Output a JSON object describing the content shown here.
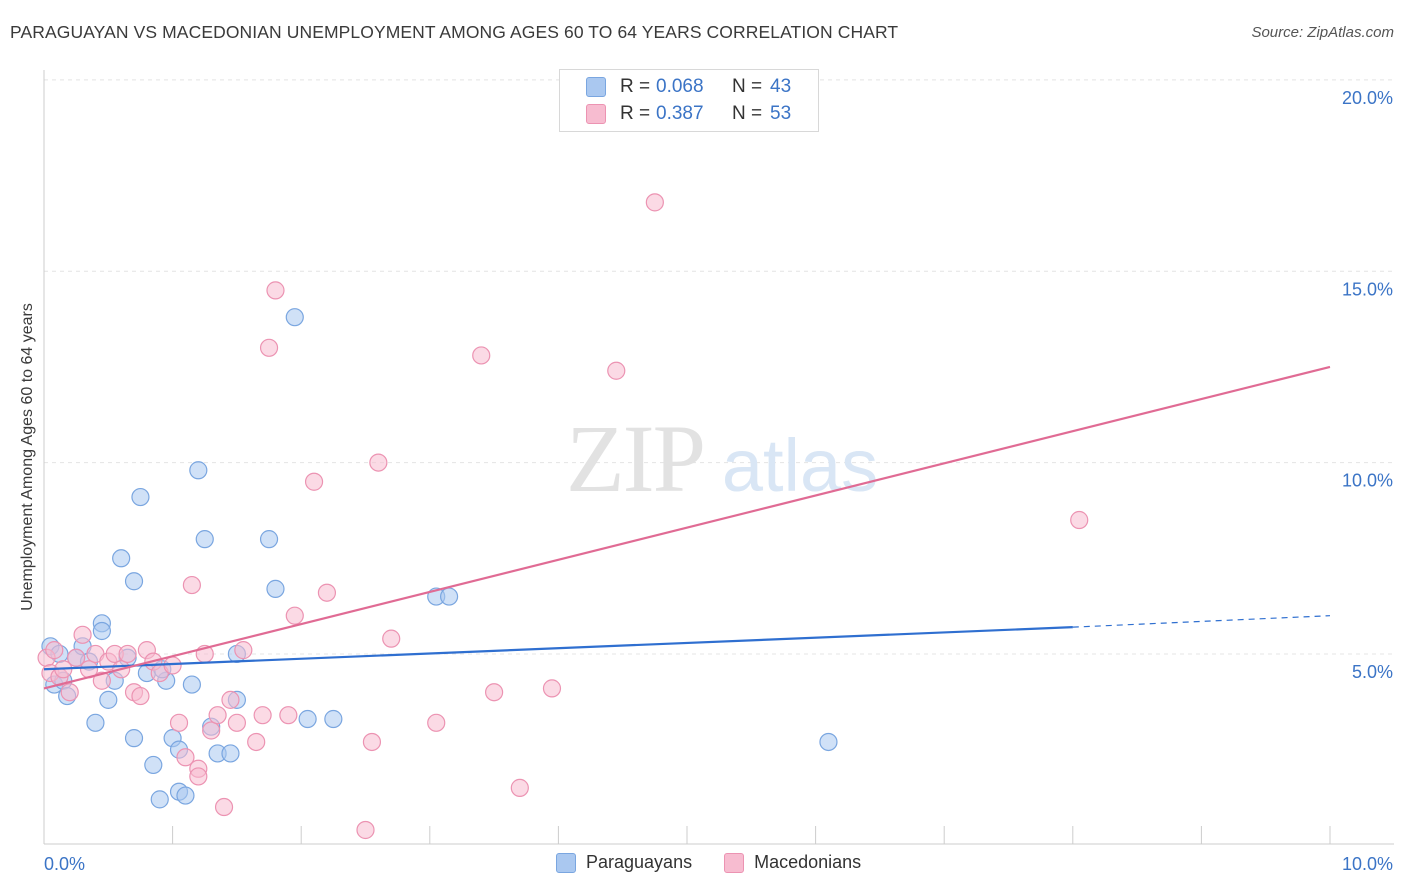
{
  "title": "PARAGUAYAN VS MACEDONIAN UNEMPLOYMENT AMONG AGES 60 TO 64 YEARS CORRELATION CHART",
  "source": "Source: ZipAtlas.com",
  "watermark": {
    "zip": "ZIP",
    "atlas": "atlas"
  },
  "legend_top": {
    "rows": [
      {
        "r_label": "R =",
        "r_value": "0.068",
        "n_label": "N =",
        "n_value": "43"
      },
      {
        "r_label": "R =",
        "r_value": "0.387",
        "n_label": "N =",
        "n_value": "53"
      }
    ]
  },
  "legend_bottom": [
    "Paraguayans",
    "Macedonians"
  ],
  "chart_data": {
    "type": "scatter",
    "title": "PARAGUAYAN VS MACEDONIAN UNEMPLOYMENT AMONG AGES 60 TO 64 YEARS CORRELATION CHART",
    "xlabel": "",
    "ylabel": "Unemployment Among Ages 60 to 64 years",
    "xlim": [
      0,
      10
    ],
    "ylim": [
      0,
      20.5
    ],
    "x_tick_labels": [
      {
        "value": 0,
        "label": "0.0%"
      },
      {
        "value": 10,
        "label": "10.0%"
      }
    ],
    "y_tick_labels": [
      {
        "value": 5,
        "label": "5.0%"
      },
      {
        "value": 10,
        "label": "10.0%"
      },
      {
        "value": 15,
        "label": "15.0%"
      },
      {
        "value": 20,
        "label": "20.0%"
      }
    ],
    "colors": {
      "paraguayans_fill": "#aac8f0",
      "paraguayans_stroke": "#7aa6e0",
      "paraguayans_line": "#2f6fd0",
      "macedonians_fill": "#f7bcd0",
      "macedonians_stroke": "#ec93b2",
      "macedonians_line": "#e06b94"
    },
    "series": [
      {
        "name": "Paraguayans",
        "R": 0.068,
        "N": 43,
        "trend": {
          "x0": 0,
          "y0": 4.6,
          "x1": 8,
          "y1": 5.7,
          "dash_to_x": 10,
          "dash_to_y": 6.0
        },
        "points": [
          [
            0.05,
            5.2
          ],
          [
            0.08,
            4.2
          ],
          [
            0.12,
            5.0
          ],
          [
            0.15,
            4.3
          ],
          [
            0.18,
            3.9
          ],
          [
            0.25,
            4.9
          ],
          [
            0.3,
            5.2
          ],
          [
            0.35,
            4.8
          ],
          [
            0.4,
            3.2
          ],
          [
            0.45,
            5.8
          ],
          [
            0.5,
            3.8
          ],
          [
            0.55,
            4.3
          ],
          [
            0.6,
            7.5
          ],
          [
            0.65,
            4.9
          ],
          [
            0.7,
            2.8
          ],
          [
            0.75,
            9.1
          ],
          [
            0.8,
            4.5
          ],
          [
            0.85,
            2.1
          ],
          [
            0.9,
            1.2
          ],
          [
            0.95,
            4.3
          ],
          [
            1.05,
            1.4
          ],
          [
            1.1,
            1.3
          ],
          [
            1.15,
            4.2
          ],
          [
            1.2,
            9.8
          ],
          [
            1.3,
            3.1
          ],
          [
            1.35,
            2.4
          ],
          [
            1.0,
            2.8
          ],
          [
            1.05,
            2.5
          ],
          [
            0.7,
            6.9
          ],
          [
            0.45,
            5.6
          ],
          [
            0.92,
            4.6
          ],
          [
            1.5,
            5.0
          ],
          [
            1.5,
            3.8
          ],
          [
            1.8,
            6.7
          ],
          [
            1.75,
            8.0
          ],
          [
            1.95,
            13.8
          ],
          [
            1.25,
            8.0
          ],
          [
            2.05,
            3.3
          ],
          [
            2.25,
            3.3
          ],
          [
            3.05,
            6.5
          ],
          [
            3.15,
            6.5
          ],
          [
            6.1,
            2.7
          ],
          [
            1.45,
            2.4
          ]
        ]
      },
      {
        "name": "Macedonians",
        "R": 0.387,
        "N": 53,
        "trend": {
          "x0": 0,
          "y0": 4.1,
          "x1": 10,
          "y1": 12.5
        },
        "points": [
          [
            0.02,
            4.9
          ],
          [
            0.05,
            4.5
          ],
          [
            0.08,
            5.1
          ],
          [
            0.12,
            4.4
          ],
          [
            0.15,
            4.6
          ],
          [
            0.2,
            4.0
          ],
          [
            0.25,
            4.9
          ],
          [
            0.3,
            5.5
          ],
          [
            0.35,
            4.6
          ],
          [
            0.4,
            5.0
          ],
          [
            0.45,
            4.3
          ],
          [
            0.5,
            4.8
          ],
          [
            0.55,
            5.0
          ],
          [
            0.6,
            4.6
          ],
          [
            0.65,
            5.0
          ],
          [
            0.7,
            4.0
          ],
          [
            0.75,
            3.9
          ],
          [
            0.8,
            5.1
          ],
          [
            0.85,
            4.8
          ],
          [
            0.9,
            4.5
          ],
          [
            1.0,
            4.7
          ],
          [
            1.05,
            3.2
          ],
          [
            1.1,
            2.3
          ],
          [
            1.15,
            6.8
          ],
          [
            1.2,
            2.0
          ],
          [
            1.25,
            5.0
          ],
          [
            1.3,
            3.0
          ],
          [
            1.35,
            3.4
          ],
          [
            1.45,
            3.8
          ],
          [
            1.5,
            3.2
          ],
          [
            1.55,
            5.1
          ],
          [
            1.65,
            2.7
          ],
          [
            1.7,
            3.4
          ],
          [
            1.75,
            13.0
          ],
          [
            1.8,
            14.5
          ],
          [
            1.9,
            3.4
          ],
          [
            1.95,
            6.0
          ],
          [
            2.1,
            9.5
          ],
          [
            2.2,
            6.6
          ],
          [
            2.5,
            0.4
          ],
          [
            2.55,
            2.7
          ],
          [
            2.6,
            10.0
          ],
          [
            2.7,
            5.4
          ],
          [
            3.05,
            3.2
          ],
          [
            3.4,
            12.8
          ],
          [
            3.5,
            4.0
          ],
          [
            3.7,
            1.5
          ],
          [
            3.95,
            4.1
          ],
          [
            4.45,
            12.4
          ],
          [
            4.75,
            16.8
          ],
          [
            8.05,
            8.5
          ],
          [
            1.4,
            1.0
          ],
          [
            1.2,
            1.8
          ]
        ]
      }
    ]
  }
}
